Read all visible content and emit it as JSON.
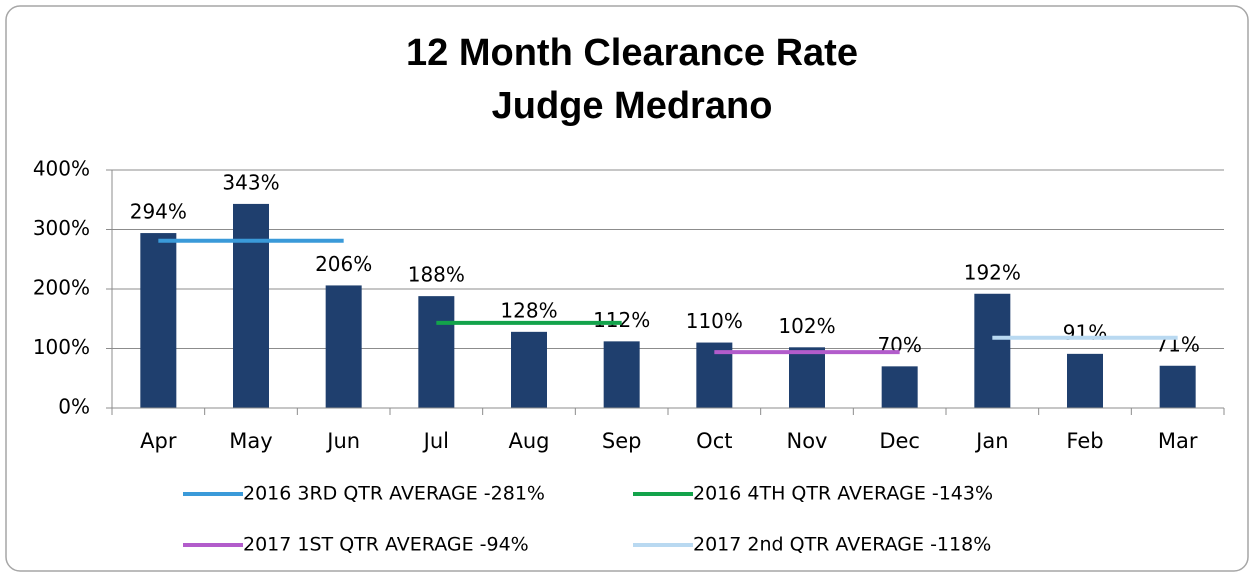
{
  "chart_data": {
    "type": "bar",
    "title": [
      "12 Month Clearance Rate",
      "Judge Medrano"
    ],
    "categories": [
      "Apr",
      "May",
      "Jun",
      "Jul",
      "Aug",
      "Sep",
      "Oct",
      "Nov",
      "Dec",
      "Jan",
      "Feb",
      "Mar"
    ],
    "values": [
      294,
      343,
      206,
      188,
      128,
      112,
      110,
      102,
      70,
      192,
      91,
      71
    ],
    "value_labels": [
      "294%",
      "343%",
      "206%",
      "188%",
      "128%",
      "112%",
      "110%",
      "102%",
      "70%",
      "192%",
      "91%",
      "71%"
    ],
    "color": "#1f3f6e",
    "ylim": [
      0,
      400
    ],
    "yticks": [
      {
        "value": 0,
        "label": "0%"
      },
      {
        "value": 100,
        "label": "100%"
      },
      {
        "value": 200,
        "label": "200%"
      },
      {
        "value": 300,
        "label": "300%"
      },
      {
        "value": 400,
        "label": "400%"
      }
    ],
    "grid": true,
    "series": [
      {
        "name": "2016 3RD QTR AVERAGE -281%",
        "color": "#3a9ad9",
        "values": [
          281,
          281,
          281,
          null,
          null,
          null,
          null,
          null,
          null,
          null,
          null,
          null
        ]
      },
      {
        "name": "2016 4TH QTR AVERAGE -143%",
        "color": "#13a34b",
        "values": [
          null,
          null,
          null,
          143,
          143,
          143,
          null,
          null,
          null,
          null,
          null,
          null
        ]
      },
      {
        "name": "2017 1ST QTR AVERAGE -94%",
        "color": "#b25ccb",
        "values": [
          null,
          null,
          null,
          null,
          null,
          null,
          94,
          94,
          94,
          null,
          null,
          null
        ]
      },
      {
        "name": "2017 2nd QTR AVERAGE -118%",
        "color": "#b9d9f1",
        "values": [
          null,
          null,
          null,
          null,
          null,
          null,
          null,
          null,
          null,
          118,
          118,
          118
        ]
      }
    ]
  }
}
